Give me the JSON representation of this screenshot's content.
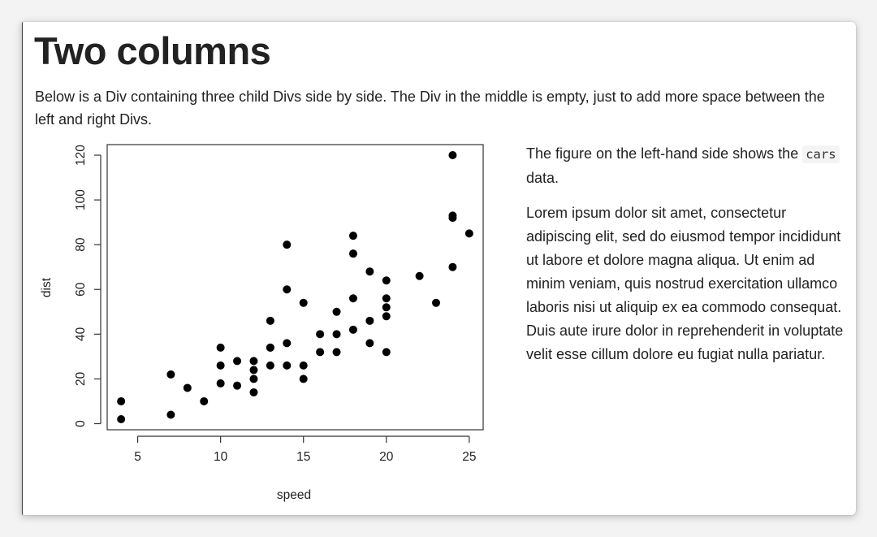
{
  "title": "Two columns",
  "intro": "Below is a Div containing three child Divs side by side. The Div in the middle is empty, just to add more space between the left and right Divs.",
  "right": {
    "p1_before": "The figure on the left-hand side shows the ",
    "p1_code": "cars",
    "p1_after": " data.",
    "p2": "Lorem ipsum dolor sit amet, consectetur adipiscing elit, sed do eiusmod tempor incididunt ut labore et dolore magna aliqua. Ut enim ad minim veniam, quis nostrud exercitation ullamco laboris nisi ut aliquip ex ea commodo consequat. Duis aute irure dolor in reprehenderit in voluptate velit esse cillum dolore eu fugiat nulla pariatur."
  },
  "chart_data": {
    "type": "scatter",
    "xlabel": "speed",
    "ylabel": "dist",
    "xlim": [
      4,
      25
    ],
    "ylim": [
      2,
      120
    ],
    "xticks": [
      5,
      10,
      15,
      20,
      25
    ],
    "yticks": [
      0,
      20,
      40,
      60,
      80,
      100,
      120
    ],
    "grid": false,
    "points": [
      [
        4,
        2
      ],
      [
        4,
        10
      ],
      [
        7,
        4
      ],
      [
        7,
        22
      ],
      [
        8,
        16
      ],
      [
        9,
        10
      ],
      [
        10,
        18
      ],
      [
        10,
        26
      ],
      [
        10,
        34
      ],
      [
        11,
        17
      ],
      [
        11,
        28
      ],
      [
        12,
        14
      ],
      [
        12,
        20
      ],
      [
        12,
        24
      ],
      [
        12,
        28
      ],
      [
        13,
        26
      ],
      [
        13,
        34
      ],
      [
        13,
        34
      ],
      [
        13,
        46
      ],
      [
        14,
        26
      ],
      [
        14,
        36
      ],
      [
        14,
        60
      ],
      [
        14,
        80
      ],
      [
        15,
        20
      ],
      [
        15,
        26
      ],
      [
        15,
        54
      ],
      [
        16,
        32
      ],
      [
        16,
        40
      ],
      [
        17,
        32
      ],
      [
        17,
        40
      ],
      [
        17,
        50
      ],
      [
        18,
        42
      ],
      [
        18,
        56
      ],
      [
        18,
        76
      ],
      [
        18,
        84
      ],
      [
        19,
        36
      ],
      [
        19,
        46
      ],
      [
        19,
        68
      ],
      [
        20,
        32
      ],
      [
        20,
        48
      ],
      [
        20,
        52
      ],
      [
        20,
        56
      ],
      [
        20,
        64
      ],
      [
        22,
        66
      ],
      [
        23,
        54
      ],
      [
        24,
        70
      ],
      [
        24,
        92
      ],
      [
        24,
        93
      ],
      [
        24,
        120
      ],
      [
        25,
        85
      ]
    ]
  }
}
